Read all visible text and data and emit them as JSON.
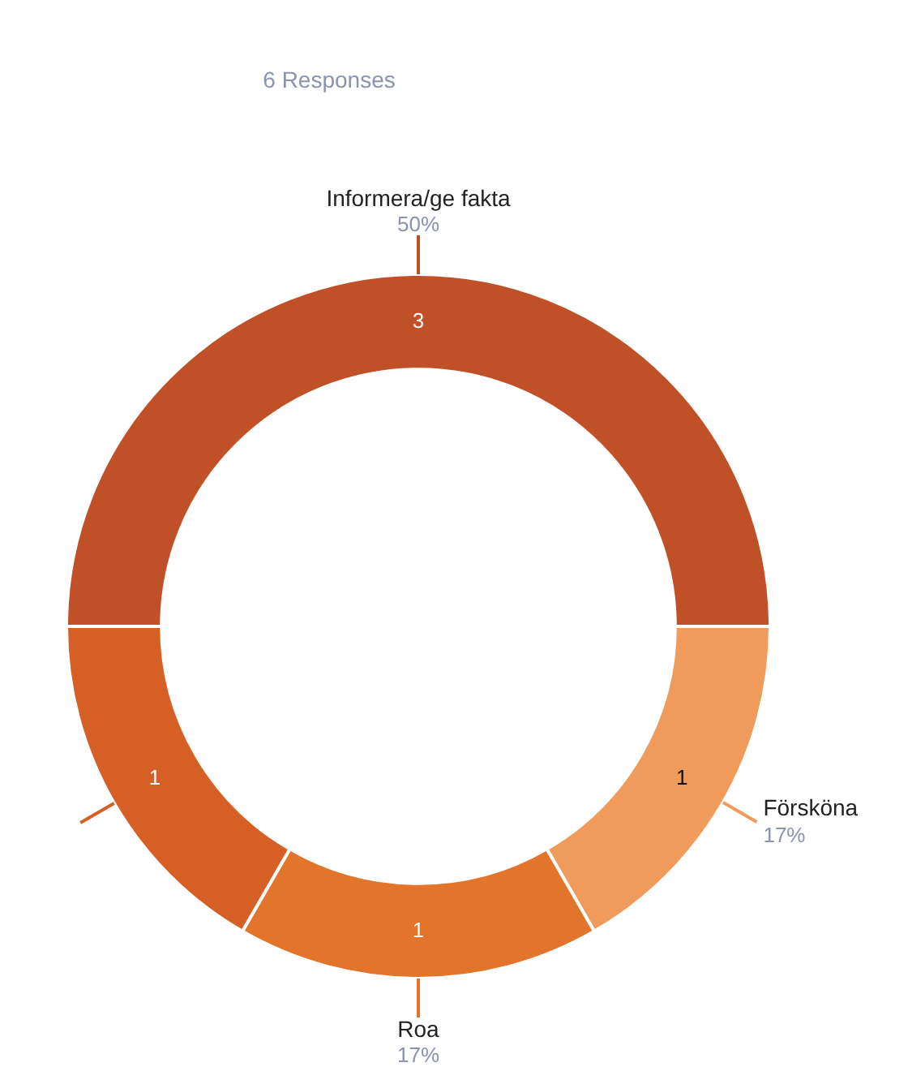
{
  "chart_data": {
    "type": "donut",
    "title": "6 Responses",
    "categories": [
      "Informera/ge fakta",
      "Försköna",
      "Roa",
      null
    ],
    "values": [
      3,
      1,
      1,
      1
    ],
    "colors": [
      "#bf5027",
      "#f09a5b",
      "#e3742b",
      "#d65f26"
    ],
    "annotations": [
      "50%",
      "17%",
      "17%"
    ],
    "data_labels": true,
    "legend": false
  }
}
